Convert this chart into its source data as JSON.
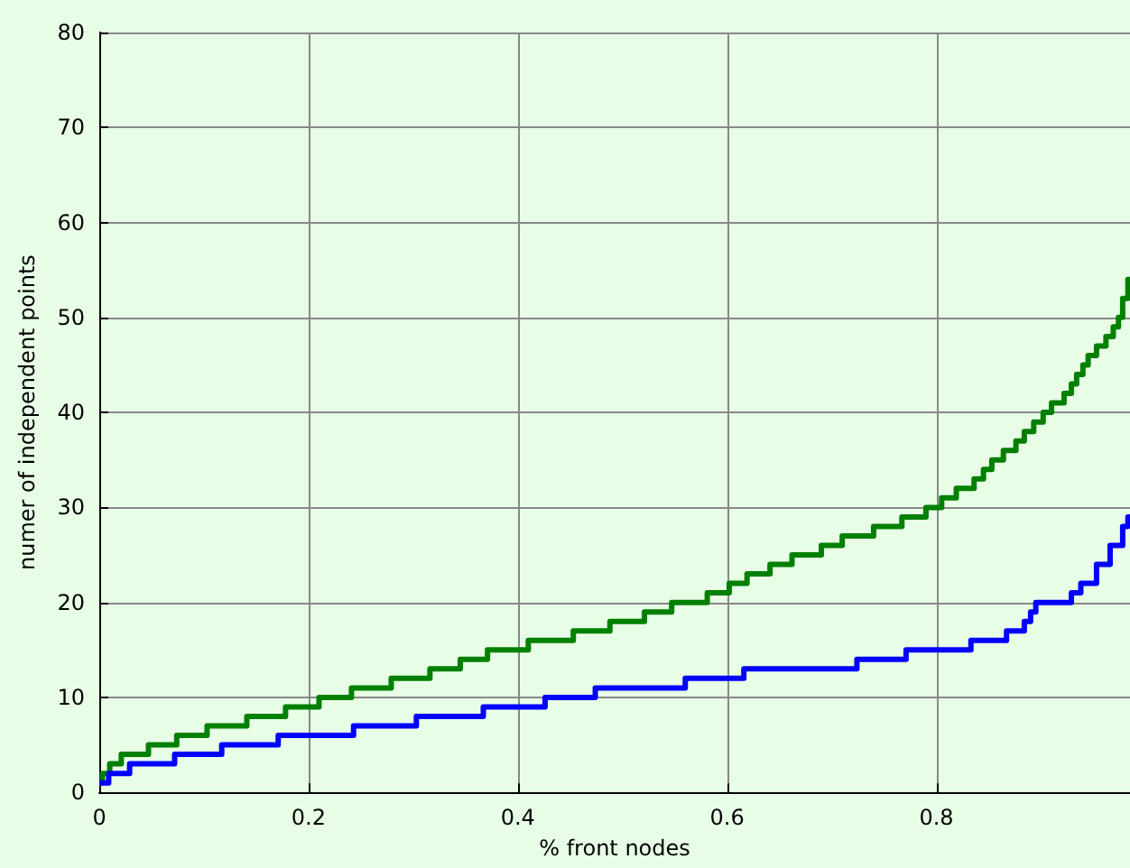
{
  "chart_data": {
    "type": "step",
    "xlabel": "% front nodes",
    "ylabel": "numer of independent points",
    "xlim": [
      0,
      0.985
    ],
    "xticks": [
      0,
      0.2,
      0.4,
      0.6,
      0.8
    ],
    "ylim": [
      0,
      80
    ],
    "yticks": [
      0,
      10,
      20,
      30,
      40,
      50,
      60,
      70,
      80
    ],
    "grid": true,
    "marker": "none",
    "line_style": "solid",
    "series": [
      {
        "color": "#008000",
        "x": [
          0,
          0.003,
          0.01,
          0.021,
          0.047,
          0.074,
          0.103,
          0.141,
          0.178,
          0.21,
          0.241,
          0.279,
          0.316,
          0.345,
          0.371,
          0.41,
          0.453,
          0.488,
          0.521,
          0.547,
          0.581,
          0.602,
          0.619,
          0.641,
          0.662,
          0.69,
          0.71,
          0.74,
          0.767,
          0.79,
          0.805,
          0.819,
          0.836,
          0.845,
          0.853,
          0.864,
          0.876,
          0.884,
          0.893,
          0.902,
          0.91,
          0.922,
          0.929,
          0.934,
          0.94,
          0.945,
          0.953,
          0.962,
          0.969,
          0.974,
          0.978,
          0.983,
          0.985
        ],
        "values": [
          1,
          2,
          3,
          4,
          5,
          6,
          7,
          8,
          9,
          10,
          11,
          12,
          13,
          14,
          15,
          16,
          17,
          18,
          19,
          20,
          21,
          22,
          23,
          24,
          25,
          26,
          27,
          28,
          29,
          30,
          31,
          32,
          33,
          34,
          35,
          36,
          37,
          38,
          39,
          40,
          41,
          42,
          43,
          44,
          45,
          46,
          47,
          48,
          49,
          50,
          52,
          54,
          54
        ]
      },
      {
        "color": "#0000ff",
        "x": [
          0,
          0.009,
          0.029,
          0.072,
          0.117,
          0.171,
          0.243,
          0.303,
          0.367,
          0.426,
          0.474,
          0.56,
          0.616,
          0.724,
          0.771,
          0.833,
          0.867,
          0.884,
          0.89,
          0.895,
          0.929,
          0.938,
          0.953,
          0.966,
          0.978,
          0.983,
          0.985
        ],
        "values": [
          1,
          2,
          3,
          4,
          5,
          6,
          7,
          8,
          9,
          10,
          11,
          12,
          13,
          14,
          15,
          16,
          17,
          18,
          19,
          20,
          21,
          22,
          24,
          26,
          28,
          29,
          29
        ]
      }
    ]
  }
}
